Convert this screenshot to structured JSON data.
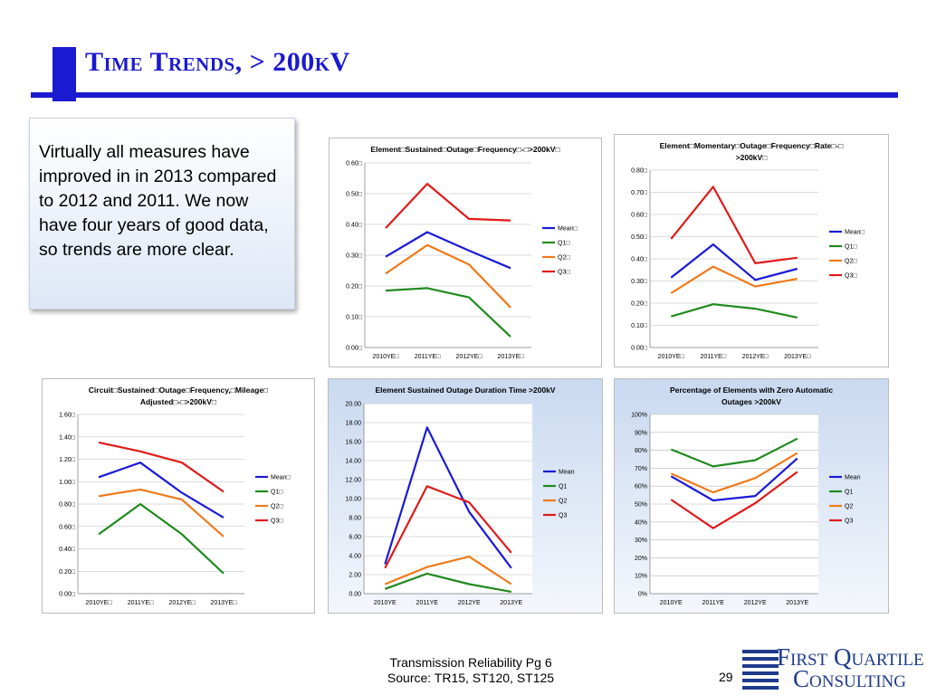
{
  "slide": {
    "title": "Time Trends, > 200kV",
    "callout_text": "Virtually all measures have improved in in 2013 compared to 2012 and 2011.  We now have four years of good data, so trends are more clear.",
    "footer_line1": "Transmission Reliability Pg 6",
    "footer_line2": "Source: TR15, ST120, ST125",
    "page_number": "29",
    "logo_line1": "First Quartile",
    "logo_line2": "Consulting"
  },
  "colors": {
    "mean": "#1a1ad6",
    "q1": "#1f8a1f",
    "q2": "#f07a1a",
    "q3": "#e01a1a",
    "title_blue": "#1a1ad0"
  },
  "chart_data": [
    {
      "type": "line",
      "title": [
        "Element□Sustained□Outage□Frequency□-□>200kV□"
      ],
      "categories": [
        "2010YE□",
        "2011YE□",
        "2012YE□",
        "2013YE□"
      ],
      "y_ticks": [
        "0.00□",
        "0.10□",
        "0.20□",
        "0.30□",
        "0.40□",
        "0.50□",
        "0.60□"
      ],
      "ylim": [
        0,
        0.6
      ],
      "series": [
        {
          "name": "Mean□",
          "key": "mean",
          "values": [
            0.295,
            0.375,
            0.315,
            0.258
          ]
        },
        {
          "name": "Q1□",
          "key": "q1",
          "values": [
            0.185,
            0.193,
            0.163,
            0.035
          ]
        },
        {
          "name": "Q2□",
          "key": "q2",
          "values": [
            0.24,
            0.333,
            0.27,
            0.13
          ]
        },
        {
          "name": "Q3□",
          "key": "q3",
          "values": [
            0.388,
            0.532,
            0.418,
            0.413
          ]
        }
      ],
      "legend_position": "right",
      "background": "white"
    },
    {
      "type": "line",
      "title": [
        "Element□Momentary□Outage□Frequency□Rate□-□",
        ">200kV□"
      ],
      "categories": [
        "2010YE□",
        "2011YE□",
        "2012YE□",
        "2013YE□"
      ],
      "y_ticks": [
        "0.00□",
        "0.10□",
        "0.20□",
        "0.30□",
        "0.40□",
        "0.50□",
        "0.60□",
        "0.70□",
        "0.80□"
      ],
      "ylim": [
        0,
        0.8
      ],
      "series": [
        {
          "name": "Mean□",
          "key": "mean",
          "values": [
            0.315,
            0.465,
            0.305,
            0.355
          ]
        },
        {
          "name": "Q1□",
          "key": "q1",
          "values": [
            0.14,
            0.195,
            0.175,
            0.135
          ]
        },
        {
          "name": "Q2□",
          "key": "q2",
          "values": [
            0.245,
            0.365,
            0.275,
            0.31
          ]
        },
        {
          "name": "Q3□",
          "key": "q3",
          "values": [
            0.49,
            0.725,
            0.38,
            0.405
          ]
        }
      ],
      "legend_position": "right",
      "background": "white"
    },
    {
      "type": "line",
      "title": [
        "Circuit□Sustained□Outage□Frequency,□Mileage□",
        "Adjusted□-□>200kV□"
      ],
      "categories": [
        "2010YE□",
        "2011YE□",
        "2012YE□",
        "2013YE□"
      ],
      "y_ticks": [
        "0.00□",
        "0.20□",
        "0.40□",
        "0.60□",
        "0.80□",
        "1.00□",
        "1.20□",
        "1.40□",
        "1.60□"
      ],
      "ylim": [
        0,
        1.6
      ],
      "series": [
        {
          "name": "Mean□",
          "key": "mean",
          "values": [
            1.04,
            1.17,
            0.9,
            0.68
          ]
        },
        {
          "name": "Q1□",
          "key": "q1",
          "values": [
            0.53,
            0.8,
            0.53,
            0.18
          ]
        },
        {
          "name": "Q2□",
          "key": "q2",
          "values": [
            0.87,
            0.93,
            0.84,
            0.51
          ]
        },
        {
          "name": "Q3□",
          "key": "q3",
          "values": [
            1.35,
            1.27,
            1.17,
            0.91
          ]
        }
      ],
      "legend_position": "right",
      "background": "white"
    },
    {
      "type": "line",
      "title": [
        "Element Sustained Outage Duration Time >200kV"
      ],
      "categories": [
        "2010YE",
        "2011YE",
        "2012YE",
        "2013YE"
      ],
      "y_ticks": [
        "0.00",
        "2.00",
        "4.00",
        "6.00",
        "8.00",
        "10.00",
        "12.00",
        "14.00",
        "16.00",
        "18.00",
        "20.00"
      ],
      "ylim": [
        0,
        20
      ],
      "series": [
        {
          "name": "Mean",
          "key": "mean",
          "values": [
            3.1,
            17.5,
            8.6,
            2.7
          ]
        },
        {
          "name": "Q1",
          "key": "q1",
          "values": [
            0.5,
            2.1,
            1.0,
            0.2
          ]
        },
        {
          "name": "Q2",
          "key": "q2",
          "values": [
            1.0,
            2.8,
            3.9,
            1.0
          ]
        },
        {
          "name": "Q3",
          "key": "q3",
          "values": [
            2.7,
            11.3,
            9.6,
            4.3
          ]
        }
      ],
      "legend_position": "right",
      "background": "gradient"
    },
    {
      "type": "line",
      "title": [
        "Percentage of Elements with Zero Automatic",
        "Outages >200kV"
      ],
      "categories": [
        "2010YE",
        "2011YE",
        "2012YE",
        "2013YE"
      ],
      "y_ticks": [
        "0%",
        "10%",
        "20%",
        "30%",
        "40%",
        "50%",
        "60%",
        "70%",
        "80%",
        "90%",
        "100%"
      ],
      "ylim": [
        0,
        100
      ],
      "series": [
        {
          "name": "Mean",
          "key": "mean",
          "values": [
            65.5,
            52.0,
            54.5,
            75.5
          ]
        },
        {
          "name": "Q1",
          "key": "q1",
          "values": [
            80.5,
            71.0,
            74.5,
            86.5
          ]
        },
        {
          "name": "Q2",
          "key": "q2",
          "values": [
            67.0,
            56.5,
            64.5,
            78.5
          ]
        },
        {
          "name": "Q3",
          "key": "q3",
          "values": [
            52.5,
            36.5,
            50.5,
            68.0
          ]
        }
      ],
      "legend_position": "right",
      "background": "gradient"
    }
  ]
}
